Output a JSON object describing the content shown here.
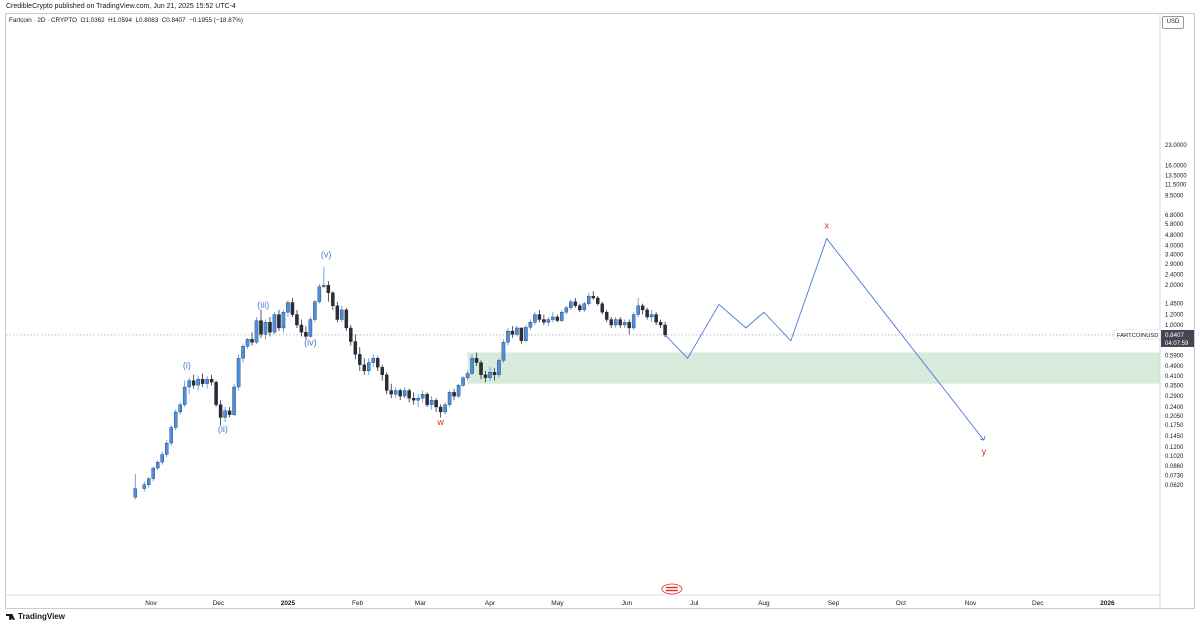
{
  "header": {
    "credit": "CredibleCrypto published on TradingView.com, Jun 21, 2025 15:52 UTC-4"
  },
  "legend": {
    "symbol": "Fartcoin · 2D · CRYPTO",
    "o": "O1.0362",
    "h": "H1.0594",
    "l": "L0.8083",
    "c": "C0.8407",
    "change": "−0.1955 (−18.87%)"
  },
  "currency_label": "USD",
  "price_tag": {
    "ticker": "FARTCOINUSD",
    "price": "0.8407",
    "countdown": "04:07:59"
  },
  "branding": "TradingView",
  "colors": {
    "up": "#2962ff",
    "down": "#131722",
    "bullish_candle": "#4a90e2",
    "bearish_candle": "#2a2e39",
    "wave_blue": "#4a78d8",
    "wave_red": "#e5281e",
    "zone_fill": "#c9e3cf",
    "background": "#ffffff"
  },
  "chart_data": {
    "type": "candlestick",
    "scale": "log",
    "price_axis_ticks": [
      "23.0000",
      "16.0000",
      "13.5000",
      "11.5000",
      "9.5000",
      "6.8000",
      "5.8000",
      "4.8000",
      "4.0000",
      "3.4000",
      "2.9000",
      "2.4000",
      "2.0000",
      "1.4500",
      "1.2000",
      "1.0000",
      "0.7100",
      "0.5900",
      "0.4900",
      "0.4100",
      "0.3500",
      "0.2900",
      "0.2400",
      "0.2050",
      "0.1750",
      "0.1450",
      "0.1200",
      "0.1020",
      "0.0860",
      "0.0730",
      "0.0620"
    ],
    "time_axis_ticks": [
      "Nov",
      "Dec",
      "2025",
      "Feb",
      "Mar",
      "Apr",
      "May",
      "Jun",
      "Jul",
      "Aug",
      "Sep",
      "Oct",
      "Nov",
      "Dec",
      "2026"
    ],
    "candles": [
      {
        "date": "2024-10-25",
        "o": 0.05,
        "h": 0.075,
        "l": 0.048,
        "c": 0.058
      },
      {
        "date": "2024-10-29",
        "o": 0.058,
        "h": 0.066,
        "l": 0.055,
        "c": 0.062
      },
      {
        "date": "2024-10-31",
        "o": 0.062,
        "h": 0.071,
        "l": 0.059,
        "c": 0.069
      },
      {
        "date": "2024-11-02",
        "o": 0.069,
        "h": 0.085,
        "l": 0.066,
        "c": 0.083
      },
      {
        "date": "2024-11-04",
        "o": 0.083,
        "h": 0.095,
        "l": 0.08,
        "c": 0.092
      },
      {
        "date": "2024-11-06",
        "o": 0.092,
        "h": 0.11,
        "l": 0.088,
        "c": 0.105
      },
      {
        "date": "2024-11-08",
        "o": 0.105,
        "h": 0.135,
        "l": 0.1,
        "c": 0.128
      },
      {
        "date": "2024-11-10",
        "o": 0.128,
        "h": 0.175,
        "l": 0.122,
        "c": 0.168
      },
      {
        "date": "2024-11-12",
        "o": 0.168,
        "h": 0.23,
        "l": 0.16,
        "c": 0.22
      },
      {
        "date": "2024-11-14",
        "o": 0.22,
        "h": 0.26,
        "l": 0.21,
        "c": 0.25
      },
      {
        "date": "2024-11-16",
        "o": 0.25,
        "h": 0.38,
        "l": 0.24,
        "c": 0.34
      },
      {
        "date": "2024-11-18",
        "o": 0.34,
        "h": 0.4,
        "l": 0.3,
        "c": 0.38
      },
      {
        "date": "2024-11-20",
        "o": 0.38,
        "h": 0.42,
        "l": 0.33,
        "c": 0.35
      },
      {
        "date": "2024-11-22",
        "o": 0.35,
        "h": 0.41,
        "l": 0.32,
        "c": 0.39
      },
      {
        "date": "2024-11-24",
        "o": 0.39,
        "h": 0.43,
        "l": 0.34,
        "c": 0.36
      },
      {
        "date": "2024-11-26",
        "o": 0.36,
        "h": 0.41,
        "l": 0.33,
        "c": 0.39
      },
      {
        "date": "2024-11-28",
        "o": 0.39,
        "h": 0.42,
        "l": 0.35,
        "c": 0.37
      },
      {
        "date": "2024-11-30",
        "o": 0.37,
        "h": 0.38,
        "l": 0.24,
        "c": 0.25
      },
      {
        "date": "2024-12-02",
        "o": 0.25,
        "h": 0.27,
        "l": 0.175,
        "c": 0.2
      },
      {
        "date": "2024-12-04",
        "o": 0.2,
        "h": 0.24,
        "l": 0.185,
        "c": 0.225
      },
      {
        "date": "2024-12-06",
        "o": 0.225,
        "h": 0.24,
        "l": 0.2,
        "c": 0.21
      },
      {
        "date": "2024-12-08",
        "o": 0.21,
        "h": 0.36,
        "l": 0.205,
        "c": 0.34
      },
      {
        "date": "2024-12-10",
        "o": 0.34,
        "h": 0.6,
        "l": 0.32,
        "c": 0.56
      },
      {
        "date": "2024-12-12",
        "o": 0.56,
        "h": 0.72,
        "l": 0.52,
        "c": 0.69
      },
      {
        "date": "2024-12-14",
        "o": 0.69,
        "h": 0.8,
        "l": 0.66,
        "c": 0.78
      },
      {
        "date": "2024-12-16",
        "o": 0.78,
        "h": 0.88,
        "l": 0.7,
        "c": 0.74
      },
      {
        "date": "2024-12-18",
        "o": 0.74,
        "h": 1.15,
        "l": 0.72,
        "c": 1.08
      },
      {
        "date": "2024-12-20",
        "o": 1.08,
        "h": 1.3,
        "l": 0.8,
        "c": 0.85
      },
      {
        "date": "2024-12-22",
        "o": 0.85,
        "h": 1.1,
        "l": 0.78,
        "c": 1.05
      },
      {
        "date": "2024-12-24",
        "o": 1.05,
        "h": 1.15,
        "l": 0.82,
        "c": 0.88
      },
      {
        "date": "2024-12-26",
        "o": 0.88,
        "h": 1.25,
        "l": 0.85,
        "c": 1.2
      },
      {
        "date": "2024-12-28",
        "o": 1.2,
        "h": 1.3,
        "l": 0.9,
        "c": 0.95
      },
      {
        "date": "2024-12-30",
        "o": 0.95,
        "h": 1.3,
        "l": 0.88,
        "c": 1.25
      },
      {
        "date": "2025-01-01",
        "o": 1.25,
        "h": 1.55,
        "l": 1.15,
        "c": 1.48
      },
      {
        "date": "2025-01-03",
        "o": 1.48,
        "h": 1.6,
        "l": 1.15,
        "c": 1.2
      },
      {
        "date": "2025-01-05",
        "o": 1.2,
        "h": 1.3,
        "l": 0.95,
        "c": 1.0
      },
      {
        "date": "2025-01-07",
        "o": 1.0,
        "h": 1.1,
        "l": 0.82,
        "c": 0.88
      },
      {
        "date": "2025-01-09",
        "o": 0.88,
        "h": 0.98,
        "l": 0.78,
        "c": 0.82
      },
      {
        "date": "2025-01-11",
        "o": 0.82,
        "h": 1.15,
        "l": 0.8,
        "c": 1.1
      },
      {
        "date": "2025-01-13",
        "o": 1.1,
        "h": 1.55,
        "l": 1.05,
        "c": 1.5
      },
      {
        "date": "2025-01-15",
        "o": 1.5,
        "h": 2.05,
        "l": 1.45,
        "c": 1.95
      },
      {
        "date": "2025-01-17",
        "o": 1.95,
        "h": 2.75,
        "l": 1.9,
        "c": 2.0
      },
      {
        "date": "2025-01-19",
        "o": 2.0,
        "h": 2.15,
        "l": 1.5,
        "c": 1.75
      },
      {
        "date": "2025-01-21",
        "o": 1.75,
        "h": 1.8,
        "l": 1.3,
        "c": 1.4
      },
      {
        "date": "2025-01-23",
        "o": 1.4,
        "h": 1.5,
        "l": 1.05,
        "c": 1.1
      },
      {
        "date": "2025-01-25",
        "o": 1.1,
        "h": 1.4,
        "l": 1.05,
        "c": 1.3
      },
      {
        "date": "2025-01-27",
        "o": 1.3,
        "h": 1.35,
        "l": 0.9,
        "c": 0.95
      },
      {
        "date": "2025-01-29",
        "o": 0.95,
        "h": 1.0,
        "l": 0.7,
        "c": 0.75
      },
      {
        "date": "2025-01-31",
        "o": 0.75,
        "h": 0.85,
        "l": 0.55,
        "c": 0.6
      },
      {
        "date": "2025-02-02",
        "o": 0.6,
        "h": 0.68,
        "l": 0.45,
        "c": 0.5
      },
      {
        "date": "2025-02-04",
        "o": 0.5,
        "h": 0.56,
        "l": 0.42,
        "c": 0.45
      },
      {
        "date": "2025-02-06",
        "o": 0.45,
        "h": 0.56,
        "l": 0.42,
        "c": 0.52
      },
      {
        "date": "2025-02-08",
        "o": 0.52,
        "h": 0.6,
        "l": 0.48,
        "c": 0.56
      },
      {
        "date": "2025-02-10",
        "o": 0.56,
        "h": 0.58,
        "l": 0.45,
        "c": 0.48
      },
      {
        "date": "2025-02-12",
        "o": 0.48,
        "h": 0.5,
        "l": 0.38,
        "c": 0.42
      },
      {
        "date": "2025-02-14",
        "o": 0.42,
        "h": 0.44,
        "l": 0.3,
        "c": 0.32
      },
      {
        "date": "2025-02-16",
        "o": 0.32,
        "h": 0.36,
        "l": 0.28,
        "c": 0.3
      },
      {
        "date": "2025-02-18",
        "o": 0.3,
        "h": 0.34,
        "l": 0.28,
        "c": 0.32
      },
      {
        "date": "2025-02-20",
        "o": 0.32,
        "h": 0.33,
        "l": 0.27,
        "c": 0.29
      },
      {
        "date": "2025-02-22",
        "o": 0.29,
        "h": 0.34,
        "l": 0.28,
        "c": 0.32
      },
      {
        "date": "2025-02-24",
        "o": 0.32,
        "h": 0.33,
        "l": 0.26,
        "c": 0.28
      },
      {
        "date": "2025-02-26",
        "o": 0.28,
        "h": 0.31,
        "l": 0.25,
        "c": 0.27
      },
      {
        "date": "2025-02-28",
        "o": 0.27,
        "h": 0.3,
        "l": 0.24,
        "c": 0.28
      },
      {
        "date": "2025-03-02",
        "o": 0.28,
        "h": 0.32,
        "l": 0.26,
        "c": 0.3
      },
      {
        "date": "2025-03-04",
        "o": 0.3,
        "h": 0.31,
        "l": 0.24,
        "c": 0.25
      },
      {
        "date": "2025-03-06",
        "o": 0.25,
        "h": 0.29,
        "l": 0.23,
        "c": 0.27
      },
      {
        "date": "2025-03-08",
        "o": 0.27,
        "h": 0.28,
        "l": 0.22,
        "c": 0.24
      },
      {
        "date": "2025-03-10",
        "o": 0.24,
        "h": 0.25,
        "l": 0.2,
        "c": 0.22
      },
      {
        "date": "2025-03-12",
        "o": 0.22,
        "h": 0.26,
        "l": 0.21,
        "c": 0.25
      },
      {
        "date": "2025-03-14",
        "o": 0.25,
        "h": 0.32,
        "l": 0.24,
        "c": 0.31
      },
      {
        "date": "2025-03-16",
        "o": 0.31,
        "h": 0.33,
        "l": 0.27,
        "c": 0.29
      },
      {
        "date": "2025-03-18",
        "o": 0.29,
        "h": 0.36,
        "l": 0.28,
        "c": 0.35
      },
      {
        "date": "2025-03-20",
        "o": 0.35,
        "h": 0.41,
        "l": 0.34,
        "c": 0.4
      },
      {
        "date": "2025-03-22",
        "o": 0.4,
        "h": 0.45,
        "l": 0.38,
        "c": 0.43
      },
      {
        "date": "2025-03-24",
        "o": 0.43,
        "h": 0.6,
        "l": 0.42,
        "c": 0.56
      },
      {
        "date": "2025-03-26",
        "o": 0.56,
        "h": 0.62,
        "l": 0.49,
        "c": 0.52
      },
      {
        "date": "2025-03-28",
        "o": 0.52,
        "h": 0.54,
        "l": 0.39,
        "c": 0.42
      },
      {
        "date": "2025-03-30",
        "o": 0.42,
        "h": 0.45,
        "l": 0.37,
        "c": 0.4
      },
      {
        "date": "2025-04-01",
        "o": 0.4,
        "h": 0.48,
        "l": 0.38,
        "c": 0.44
      },
      {
        "date": "2025-04-03",
        "o": 0.44,
        "h": 0.47,
        "l": 0.38,
        "c": 0.42
      },
      {
        "date": "2025-04-05",
        "o": 0.42,
        "h": 0.56,
        "l": 0.4,
        "c": 0.54
      },
      {
        "date": "2025-04-07",
        "o": 0.54,
        "h": 0.78,
        "l": 0.52,
        "c": 0.74
      },
      {
        "date": "2025-04-09",
        "o": 0.74,
        "h": 0.95,
        "l": 0.7,
        "c": 0.9
      },
      {
        "date": "2025-04-11",
        "o": 0.9,
        "h": 0.98,
        "l": 0.8,
        "c": 0.85
      },
      {
        "date": "2025-04-13",
        "o": 0.85,
        "h": 0.98,
        "l": 0.82,
        "c": 0.95
      },
      {
        "date": "2025-04-15",
        "o": 0.95,
        "h": 0.96,
        "l": 0.72,
        "c": 0.76
      },
      {
        "date": "2025-04-17",
        "o": 0.76,
        "h": 1.0,
        "l": 0.74,
        "c": 0.96
      },
      {
        "date": "2025-04-19",
        "o": 0.96,
        "h": 1.1,
        "l": 0.92,
        "c": 1.05
      },
      {
        "date": "2025-04-21",
        "o": 1.05,
        "h": 1.25,
        "l": 1.0,
        "c": 1.2
      },
      {
        "date": "2025-04-23",
        "o": 1.2,
        "h": 1.3,
        "l": 1.05,
        "c": 1.1
      },
      {
        "date": "2025-04-25",
        "o": 1.1,
        "h": 1.2,
        "l": 1.0,
        "c": 1.05
      },
      {
        "date": "2025-04-27",
        "o": 1.05,
        "h": 1.15,
        "l": 0.98,
        "c": 1.1
      },
      {
        "date": "2025-04-29",
        "o": 1.1,
        "h": 1.25,
        "l": 1.05,
        "c": 1.15
      },
      {
        "date": "2025-05-01",
        "o": 1.15,
        "h": 1.2,
        "l": 1.05,
        "c": 1.08
      },
      {
        "date": "2025-05-03",
        "o": 1.08,
        "h": 1.3,
        "l": 1.05,
        "c": 1.25
      },
      {
        "date": "2025-05-05",
        "o": 1.25,
        "h": 1.4,
        "l": 1.2,
        "c": 1.35
      },
      {
        "date": "2025-05-07",
        "o": 1.35,
        "h": 1.55,
        "l": 1.3,
        "c": 1.5
      },
      {
        "date": "2025-05-09",
        "o": 1.5,
        "h": 1.6,
        "l": 1.35,
        "c": 1.4
      },
      {
        "date": "2025-05-11",
        "o": 1.4,
        "h": 1.45,
        "l": 1.25,
        "c": 1.3
      },
      {
        "date": "2025-05-13",
        "o": 1.3,
        "h": 1.5,
        "l": 1.25,
        "c": 1.45
      },
      {
        "date": "2025-05-15",
        "o": 1.45,
        "h": 1.75,
        "l": 1.4,
        "c": 1.65
      },
      {
        "date": "2025-05-17",
        "o": 1.65,
        "h": 1.8,
        "l": 1.55,
        "c": 1.6
      },
      {
        "date": "2025-05-19",
        "o": 1.6,
        "h": 1.65,
        "l": 1.4,
        "c": 1.45
      },
      {
        "date": "2025-05-21",
        "o": 1.45,
        "h": 1.5,
        "l": 1.2,
        "c": 1.25
      },
      {
        "date": "2025-05-23",
        "o": 1.25,
        "h": 1.3,
        "l": 1.05,
        "c": 1.1
      },
      {
        "date": "2025-05-25",
        "o": 1.1,
        "h": 1.15,
        "l": 0.95,
        "c": 1.0
      },
      {
        "date": "2025-05-27",
        "o": 1.0,
        "h": 1.15,
        "l": 0.95,
        "c": 1.1
      },
      {
        "date": "2025-05-29",
        "o": 1.1,
        "h": 1.15,
        "l": 0.95,
        "c": 1.0
      },
      {
        "date": "2025-05-31",
        "o": 1.0,
        "h": 1.1,
        "l": 0.95,
        "c": 1.05
      },
      {
        "date": "2025-06-02",
        "o": 1.05,
        "h": 1.1,
        "l": 0.85,
        "c": 0.95
      },
      {
        "date": "2025-06-04",
        "o": 0.95,
        "h": 1.25,
        "l": 0.92,
        "c": 1.2
      },
      {
        "date": "2025-06-06",
        "o": 1.2,
        "h": 1.6,
        "l": 1.15,
        "c": 1.4
      },
      {
        "date": "2025-06-08",
        "o": 1.4,
        "h": 1.45,
        "l": 1.2,
        "c": 1.3
      },
      {
        "date": "2025-06-10",
        "o": 1.3,
        "h": 1.35,
        "l": 1.1,
        "c": 1.15
      },
      {
        "date": "2025-06-12",
        "o": 1.15,
        "h": 1.3,
        "l": 1.05,
        "c": 1.2
      },
      {
        "date": "2025-06-14",
        "o": 1.2,
        "h": 1.25,
        "l": 1.0,
        "c": 1.05
      },
      {
        "date": "2025-06-16",
        "o": 1.05,
        "h": 1.1,
        "l": 0.95,
        "c": 1.0
      },
      {
        "date": "2025-06-18",
        "o": 1.0,
        "h": 1.06,
        "l": 0.808,
        "c": 0.841
      }
    ],
    "current_price": 0.8407,
    "demand_zone": {
      "start": "2025-03-22",
      "end": "2026-03-01",
      "high": 0.62,
      "low": 0.36
    },
    "projection_path": [
      {
        "date": "2025-06-18",
        "price": 0.841
      },
      {
        "date": "2025-06-28",
        "price": 0.56
      },
      {
        "date": "2025-07-12",
        "price": 1.43
      },
      {
        "date": "2025-07-24",
        "price": 0.95
      },
      {
        "date": "2025-08-01",
        "price": 1.25
      },
      {
        "date": "2025-08-13",
        "price": 0.76
      },
      {
        "date": "2025-08-29",
        "price": 4.5
      },
      {
        "date": "2025-11-07",
        "price": 0.135
      }
    ],
    "wave_labels": [
      {
        "text": "(i)",
        "date": "2024-11-17",
        "price": 0.47,
        "color": "blue"
      },
      {
        "text": "(ii)",
        "date": "2024-12-03",
        "price": 0.155,
        "color": "blue"
      },
      {
        "text": "(iii)",
        "date": "2024-12-21",
        "price": 1.35,
        "color": "blue"
      },
      {
        "text": "(iv)",
        "date": "2025-01-11",
        "price": 0.7,
        "color": "blue"
      },
      {
        "text": "(v)",
        "date": "2025-01-18",
        "price": 3.25,
        "color": "blue"
      },
      {
        "text": "w",
        "date": "2025-03-10",
        "price": 0.175,
        "color": "red"
      },
      {
        "text": "x",
        "date": "2025-08-29",
        "price": 5.35,
        "color": "red"
      },
      {
        "text": "y",
        "date": "2025-11-07",
        "price": 0.105,
        "color": "red"
      }
    ]
  }
}
